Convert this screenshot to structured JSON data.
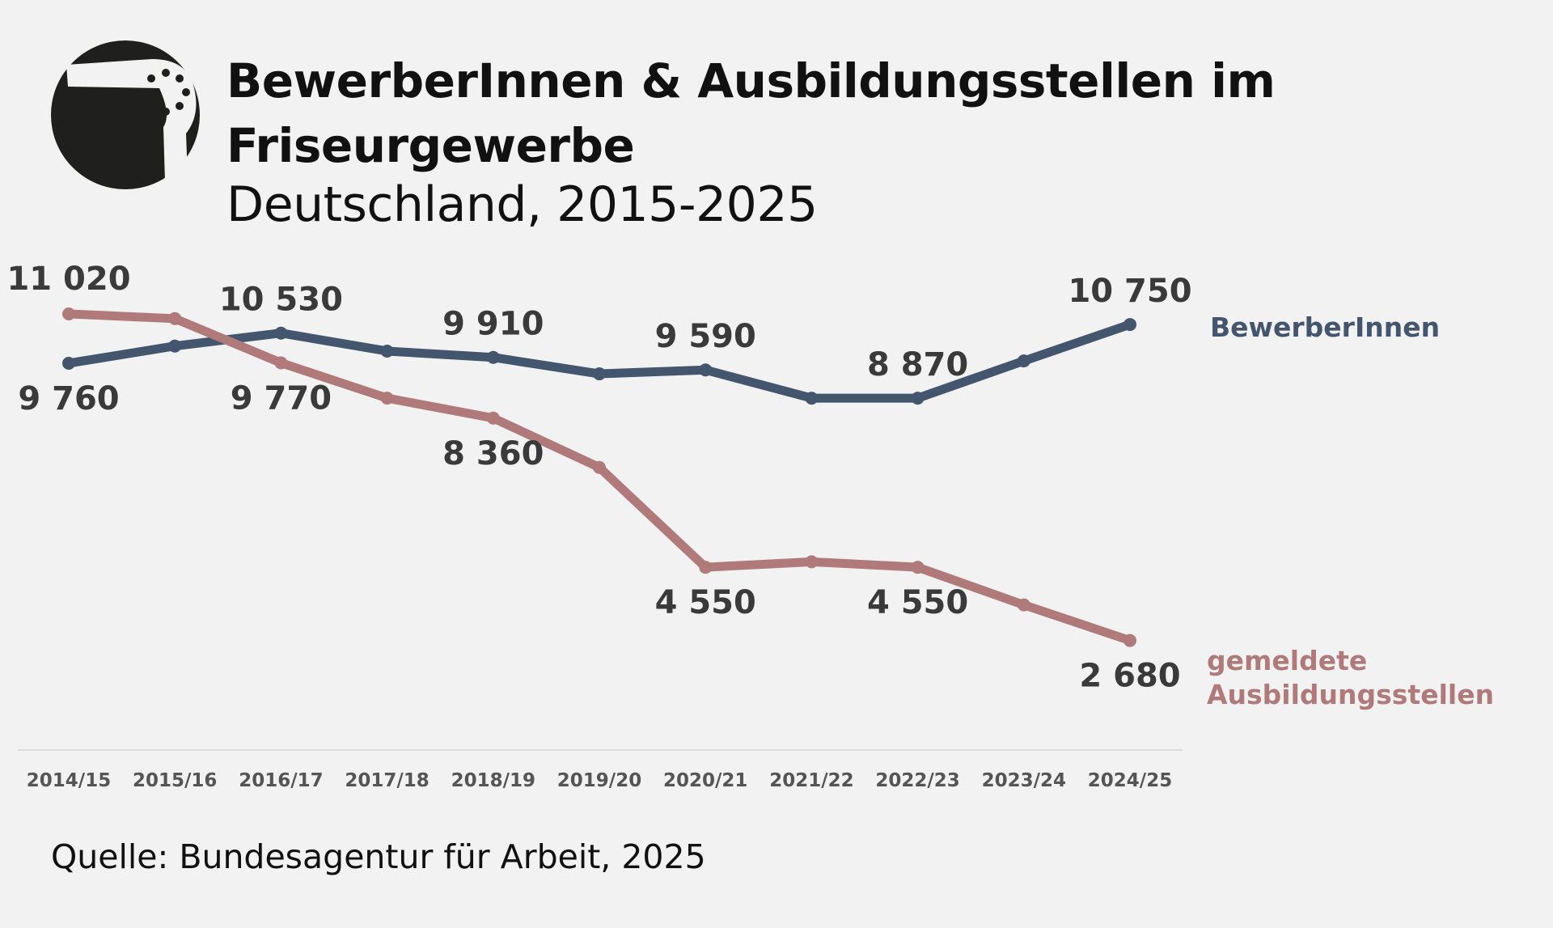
{
  "header": {
    "title": "BewerberInnen & Ausbildungsstellen im Friseurgewerbe",
    "subtitle": "Deutschland, 2015-2025",
    "icon": "hair-dryer-icon"
  },
  "source": "Quelle: Bundesagentur für Arbeit, 2025",
  "colors": {
    "background": "#f2f2f2",
    "bewerber": "#44556e",
    "stellen": "#b07a7a",
    "labels": "#3a3a3a",
    "axis": "#dcdcdc"
  },
  "chart_data": {
    "type": "line",
    "title": "BewerberInnen & Ausbildungsstellen im Friseurgewerbe",
    "subtitle": "Deutschland, 2015-2025",
    "xlabel": "",
    "ylabel": "",
    "categories": [
      "2014/15",
      "2015/16",
      "2016/17",
      "2017/18",
      "2018/19",
      "2019/20",
      "2020/21",
      "2021/22",
      "2022/23",
      "2023/24",
      "2024/25"
    ],
    "ylim": [
      0,
      11500
    ],
    "grid": false,
    "legend": "right, inline labels",
    "series": [
      {
        "name": "BewerberInnen",
        "color": "#44556e",
        "values": [
          9760,
          10200,
          10530,
          10070,
          9910,
          9490,
          9590,
          8870,
          8870,
          9820,
          10750
        ],
        "labels": [
          "9 760",
          null,
          "10 530",
          null,
          "9 910",
          null,
          "9 590",
          null,
          "8 870",
          null,
          "10 750"
        ]
      },
      {
        "name": "gemeldete Ausbildungsstellen",
        "color": "#b07a7a",
        "values": [
          11020,
          10900,
          9770,
          8870,
          8360,
          7100,
          4550,
          4690,
          4550,
          3590,
          2680
        ],
        "labels": [
          "11 020",
          null,
          "9 770",
          null,
          "8 360",
          null,
          "4 550",
          null,
          "4 550",
          null,
          "2 680"
        ]
      }
    ]
  }
}
